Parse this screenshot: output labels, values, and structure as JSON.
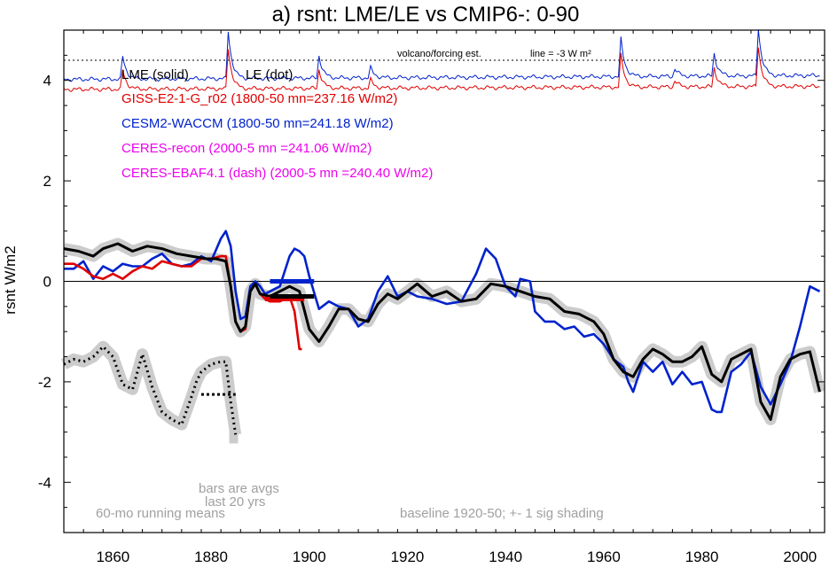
{
  "chart_data": {
    "type": "line",
    "title": "a) rsnt: LME/LE vs CMIP6-: 0-90",
    "ylabel": "rsnt W/m2",
    "xlabel": "",
    "xlim": [
      1850,
      2005
    ],
    "ylim": [
      -5,
      5
    ],
    "x_ticks": [
      1860,
      1880,
      1900,
      1920,
      1940,
      1960,
      1980,
      2000
    ],
    "y_ticks": [
      -4,
      -2,
      0,
      2,
      4
    ],
    "grid": false,
    "legend": {
      "lme": "LME (solid)",
      "le": "LE (dot)",
      "giss": "GISS-E2-1-G_r02 (1800-50 mn=237.16 W/m2)",
      "cesm": "CESM2-WACCM (1800-50 mn=241.18 W/m2)",
      "ceres_recon": "CERES-recon (2000-5 mn =241.06 W/m2)",
      "ceres_ebaf": "CERES-EBAF4.1 (dash) (2000-5 mn =240.40 W/m2)"
    },
    "annotations": {
      "volcano": "volcano/forcing est.",
      "line_scale": "line = -3 W m²",
      "bars": "bars are avgs",
      "last20": "last 20 yrs",
      "running": "60-mo running means",
      "baseline": "baseline 1920-50; +- 1 sig shading"
    },
    "colors": {
      "lme": "#000000",
      "giss": "#e00000",
      "cesm": "#0022cc",
      "ceres": "#ee00ee",
      "shade": "#cccccc",
      "annotation": "#a0a0a0"
    },
    "reference_line": {
      "y": 4.4
    },
    "series": [
      {
        "key": "lme",
        "x": [
          1850,
          1853,
          1856,
          1858,
          1861,
          1864,
          1867,
          1870,
          1873,
          1876,
          1879,
          1881,
          1883,
          1884,
          1885,
          1886,
          1887,
          1888,
          1889,
          1890,
          1892,
          1894,
          1896,
          1898,
          1900,
          1902,
          1904,
          1906,
          1908,
          1910,
          1912,
          1914,
          1916,
          1918,
          1920,
          1922,
          1925,
          1928,
          1931,
          1934,
          1937,
          1940,
          1943,
          1946,
          1949,
          1952,
          1955,
          1958,
          1960,
          1962,
          1964,
          1966,
          1968,
          1970,
          1972,
          1974,
          1976,
          1978,
          1980,
          1982,
          1984,
          1986,
          1988,
          1990,
          1992,
          1994,
          1996,
          1998,
          2000,
          2002,
          2004
        ],
        "y": [
          0.65,
          0.6,
          0.5,
          0.65,
          0.75,
          0.6,
          0.7,
          0.65,
          0.55,
          0.5,
          0.45,
          0.45,
          0.4,
          -0.1,
          -0.8,
          -1.0,
          -0.9,
          -0.2,
          -0.05,
          -0.25,
          -0.3,
          -0.2,
          -0.1,
          -0.2,
          -0.95,
          -1.2,
          -0.9,
          -0.55,
          -0.55,
          -0.75,
          -0.8,
          -0.45,
          -0.25,
          -0.35,
          -0.2,
          -0.05,
          -0.3,
          -0.2,
          -0.4,
          -0.35,
          -0.05,
          -0.1,
          -0.2,
          -0.3,
          -0.35,
          -0.6,
          -0.65,
          -0.8,
          -1.05,
          -1.55,
          -1.8,
          -1.9,
          -1.55,
          -1.35,
          -1.45,
          -1.6,
          -1.6,
          -1.5,
          -1.3,
          -1.85,
          -2.0,
          -1.55,
          -1.45,
          -1.35,
          -2.4,
          -2.75,
          -1.9,
          -1.55,
          -1.45,
          -1.4,
          -2.2
        ]
      },
      {
        "key": "cesm",
        "x": [
          1850,
          1852,
          1854,
          1856,
          1858,
          1860,
          1862,
          1864,
          1866,
          1868,
          1870,
          1872,
          1874,
          1876,
          1878,
          1880,
          1882,
          1883,
          1884,
          1885,
          1886,
          1887,
          1888,
          1889,
          1890,
          1891,
          1892,
          1894,
          1895,
          1896,
          1897,
          1898,
          1899,
          1900,
          1902,
          1904,
          1906,
          1908,
          1910,
          1912,
          1914,
          1916,
          1918,
          1920,
          1922,
          1925,
          1928,
          1931,
          1934,
          1936,
          1938,
          1940,
          1942,
          1943,
          1945,
          1946,
          1948,
          1950,
          1952,
          1954,
          1956,
          1958,
          1960,
          1962,
          1964,
          1965,
          1966,
          1968,
          1970,
          1972,
          1974,
          1976,
          1978,
          1980,
          1982,
          1983,
          1984,
          1986,
          1988,
          1990,
          1992,
          1994,
          1996,
          1998,
          2000,
          2002,
          2004
        ],
        "y": [
          0.25,
          0.25,
          0.4,
          0.05,
          0.3,
          0.2,
          0.35,
          0.3,
          0.3,
          0.45,
          0.55,
          0.35,
          0.3,
          0.35,
          0.5,
          0.4,
          0.85,
          1.0,
          0.7,
          -0.2,
          -0.75,
          -0.7,
          -0.1,
          0.0,
          -0.1,
          -0.25,
          -0.2,
          -0.1,
          0.2,
          0.5,
          0.65,
          0.6,
          0.5,
          0.1,
          -0.55,
          -0.4,
          -0.5,
          -0.55,
          -0.9,
          -0.75,
          -0.2,
          0.1,
          -0.3,
          -0.2,
          -0.3,
          -0.35,
          -0.45,
          -0.4,
          0.15,
          0.65,
          0.45,
          -0.1,
          -0.3,
          0.05,
          0.0,
          -0.6,
          -0.8,
          -0.8,
          -0.95,
          -0.9,
          -1.1,
          -1.05,
          -1.25,
          -1.55,
          -1.7,
          -2.0,
          -2.2,
          -1.6,
          -1.8,
          -1.6,
          -2.05,
          -1.8,
          -2.05,
          -2.0,
          -2.55,
          -2.6,
          -2.6,
          -1.8,
          -1.65,
          -1.4,
          -2.1,
          -2.45,
          -2.05,
          -1.6,
          -0.9,
          -0.1,
          -0.2
        ]
      },
      {
        "key": "giss",
        "x": [
          1850,
          1852,
          1854,
          1856,
          1858,
          1860,
          1862,
          1864,
          1866,
          1868,
          1870,
          1872,
          1874,
          1876,
          1878,
          1880,
          1882,
          1883,
          1884,
          1885,
          1886,
          1887,
          1888,
          1889,
          1890,
          1891,
          1892,
          1894,
          1896,
          1897,
          1898,
          1898.5
        ],
        "y": [
          0.35,
          0.35,
          0.25,
          0.1,
          0.05,
          0.15,
          0.05,
          0.2,
          0.3,
          0.25,
          0.4,
          0.35,
          0.3,
          0.3,
          0.45,
          0.45,
          0.5,
          0.5,
          -0.1,
          -0.8,
          -1.0,
          -0.95,
          -0.2,
          -0.05,
          -0.25,
          -0.35,
          -0.4,
          -0.4,
          -0.3,
          -0.6,
          -1.35,
          -1.35
        ]
      },
      {
        "key": "le",
        "x": [
          1850,
          1852,
          1854,
          1856,
          1858,
          1860,
          1862,
          1864,
          1866,
          1868,
          1870,
          1872,
          1874,
          1876,
          1877,
          1878,
          1880,
          1882,
          1883,
          1884,
          1885
        ],
        "y": [
          -1.65,
          -1.55,
          -1.6,
          -1.5,
          -1.3,
          -1.5,
          -2.05,
          -2.15,
          -1.45,
          -2.1,
          -2.6,
          -2.75,
          -2.85,
          -2.3,
          -2.0,
          -1.8,
          -1.65,
          -1.6,
          -1.6,
          -2.4,
          -3.05
        ]
      }
    ],
    "bars": [
      {
        "key": "giss",
        "x": [
          1891,
          1899
        ],
        "y": -0.35
      },
      {
        "key": "lme",
        "x": [
          1892,
          1901
        ],
        "y": -0.3
      },
      {
        "key": "cesm",
        "x": [
          1892,
          1901
        ],
        "y": 0.0
      },
      {
        "key": "le",
        "x": [
          1878,
          1885
        ],
        "y": -2.25
      }
    ],
    "volcano_spikes": [
      {
        "x": 1862,
        "h": 0.45
      },
      {
        "x": 1883.5,
        "h": 0.95
      },
      {
        "x": 1902,
        "h": 0.45
      },
      {
        "x": 1912.5,
        "h": 0.2
      },
      {
        "x": 1963.5,
        "h": 0.75
      },
      {
        "x": 1974.5,
        "h": 0.15
      },
      {
        "x": 1982.5,
        "h": 0.45
      },
      {
        "x": 1991.5,
        "h": 0.95
      }
    ]
  }
}
